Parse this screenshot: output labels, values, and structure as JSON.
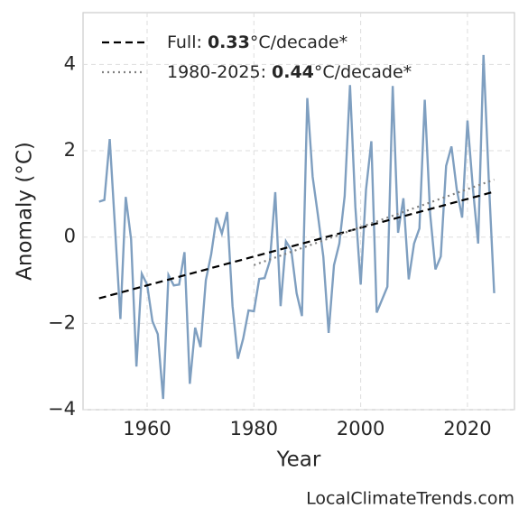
{
  "chart_data": {
    "type": "line",
    "x_label": "Year",
    "y_label": "Anomaly (°C)",
    "watermark": "LocalClimateTrends.com",
    "x": [
      1951,
      1952,
      1953,
      1954,
      1955,
      1956,
      1957,
      1958,
      1959,
      1960,
      1961,
      1962,
      1963,
      1964,
      1965,
      1966,
      1967,
      1968,
      1969,
      1970,
      1971,
      1972,
      1973,
      1974,
      1975,
      1976,
      1977,
      1978,
      1979,
      1980,
      1981,
      1982,
      1983,
      1984,
      1985,
      1986,
      1987,
      1988,
      1989,
      1990,
      1991,
      1992,
      1993,
      1994,
      1995,
      1996,
      1997,
      1998,
      1999,
      2000,
      2001,
      2002,
      2003,
      2004,
      2005,
      2006,
      2007,
      2008,
      2009,
      2010,
      2011,
      2012,
      2013,
      2014,
      2015,
      2016,
      2017,
      2018,
      2019,
      2020,
      2021,
      2022,
      2023,
      2024,
      2025
    ],
    "series": [
      {
        "color": "#7f9fc0",
        "values": [
          0.82,
          0.86,
          2.27,
          0.2,
          -1.9,
          0.93,
          -0.05,
          -3.0,
          -0.85,
          -1.1,
          -1.95,
          -2.25,
          -3.75,
          -0.88,
          -1.12,
          -1.1,
          -0.35,
          -3.4,
          -2.1,
          -2.55,
          -1.0,
          -0.4,
          0.45,
          0.08,
          0.58,
          -1.6,
          -2.82,
          -2.35,
          -1.7,
          -1.72,
          -0.97,
          -0.95,
          -0.55,
          1.04,
          -1.6,
          -0.1,
          -0.3,
          -1.3,
          -1.83,
          3.22,
          1.4,
          0.5,
          -0.45,
          -2.22,
          -0.65,
          -0.15,
          0.95,
          3.52,
          0.7,
          -1.1,
          1.1,
          2.22,
          -1.75,
          -1.45,
          -1.15,
          3.5,
          0.1,
          0.9,
          -0.98,
          -0.15,
          0.2,
          3.18,
          0.55,
          -0.75,
          -0.45,
          1.65,
          2.1,
          1.1,
          0.45,
          2.7,
          1.15,
          -0.15,
          4.22,
          1.3,
          -1.3
        ]
      }
    ],
    "trends": [
      {
        "name": "Full: 0.33°C/decade*",
        "color": "#000000",
        "dash": "8 5",
        "x": [
          1951,
          2025
        ],
        "values": [
          -1.42,
          1.05
        ]
      },
      {
        "name": "1980-2025: 0.44°C/decade*",
        "color": "#808080",
        "dash": "2 4",
        "x": [
          1980,
          2025
        ],
        "values": [
          -0.65,
          1.33
        ]
      }
    ],
    "xlim": [
      1948,
      2028.8
    ],
    "ylim": [
      -4,
      5.2
    ],
    "xticks": [
      1960,
      1980,
      2000,
      2020
    ],
    "yticks": [
      {
        "value": -4,
        "label": "−4"
      },
      {
        "value": -2,
        "label": "−2"
      },
      0,
      2,
      4
    ],
    "grid": true,
    "legend": "upper left"
  }
}
